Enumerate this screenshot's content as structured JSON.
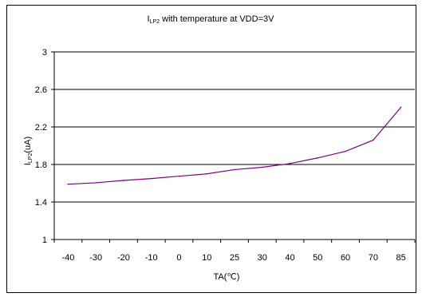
{
  "chart_data": {
    "type": "line",
    "title": {
      "main": "I",
      "sub": "LP2",
      "rest": " with temperature at VDD=3V"
    },
    "xlabel": "TA(℃)",
    "ylabel": {
      "main": "I",
      "sub": "LP2",
      "rest": "(uA)"
    },
    "categories": [
      "-40",
      "-30",
      "-20",
      "-10",
      "0",
      "10",
      "25",
      "30",
      "40",
      "50",
      "60",
      "70",
      "85"
    ],
    "yticks": [
      "1",
      "1.4",
      "1.8",
      "2.2",
      "2.6",
      "3"
    ],
    "ylim": [
      1,
      3
    ],
    "grid": true,
    "series": [
      {
        "values": [
          1.59,
          1.605,
          1.63,
          1.65,
          1.675,
          1.7,
          1.745,
          1.77,
          1.81,
          1.87,
          1.94,
          2.06,
          2.41
        ],
        "color": "#800080"
      }
    ]
  }
}
